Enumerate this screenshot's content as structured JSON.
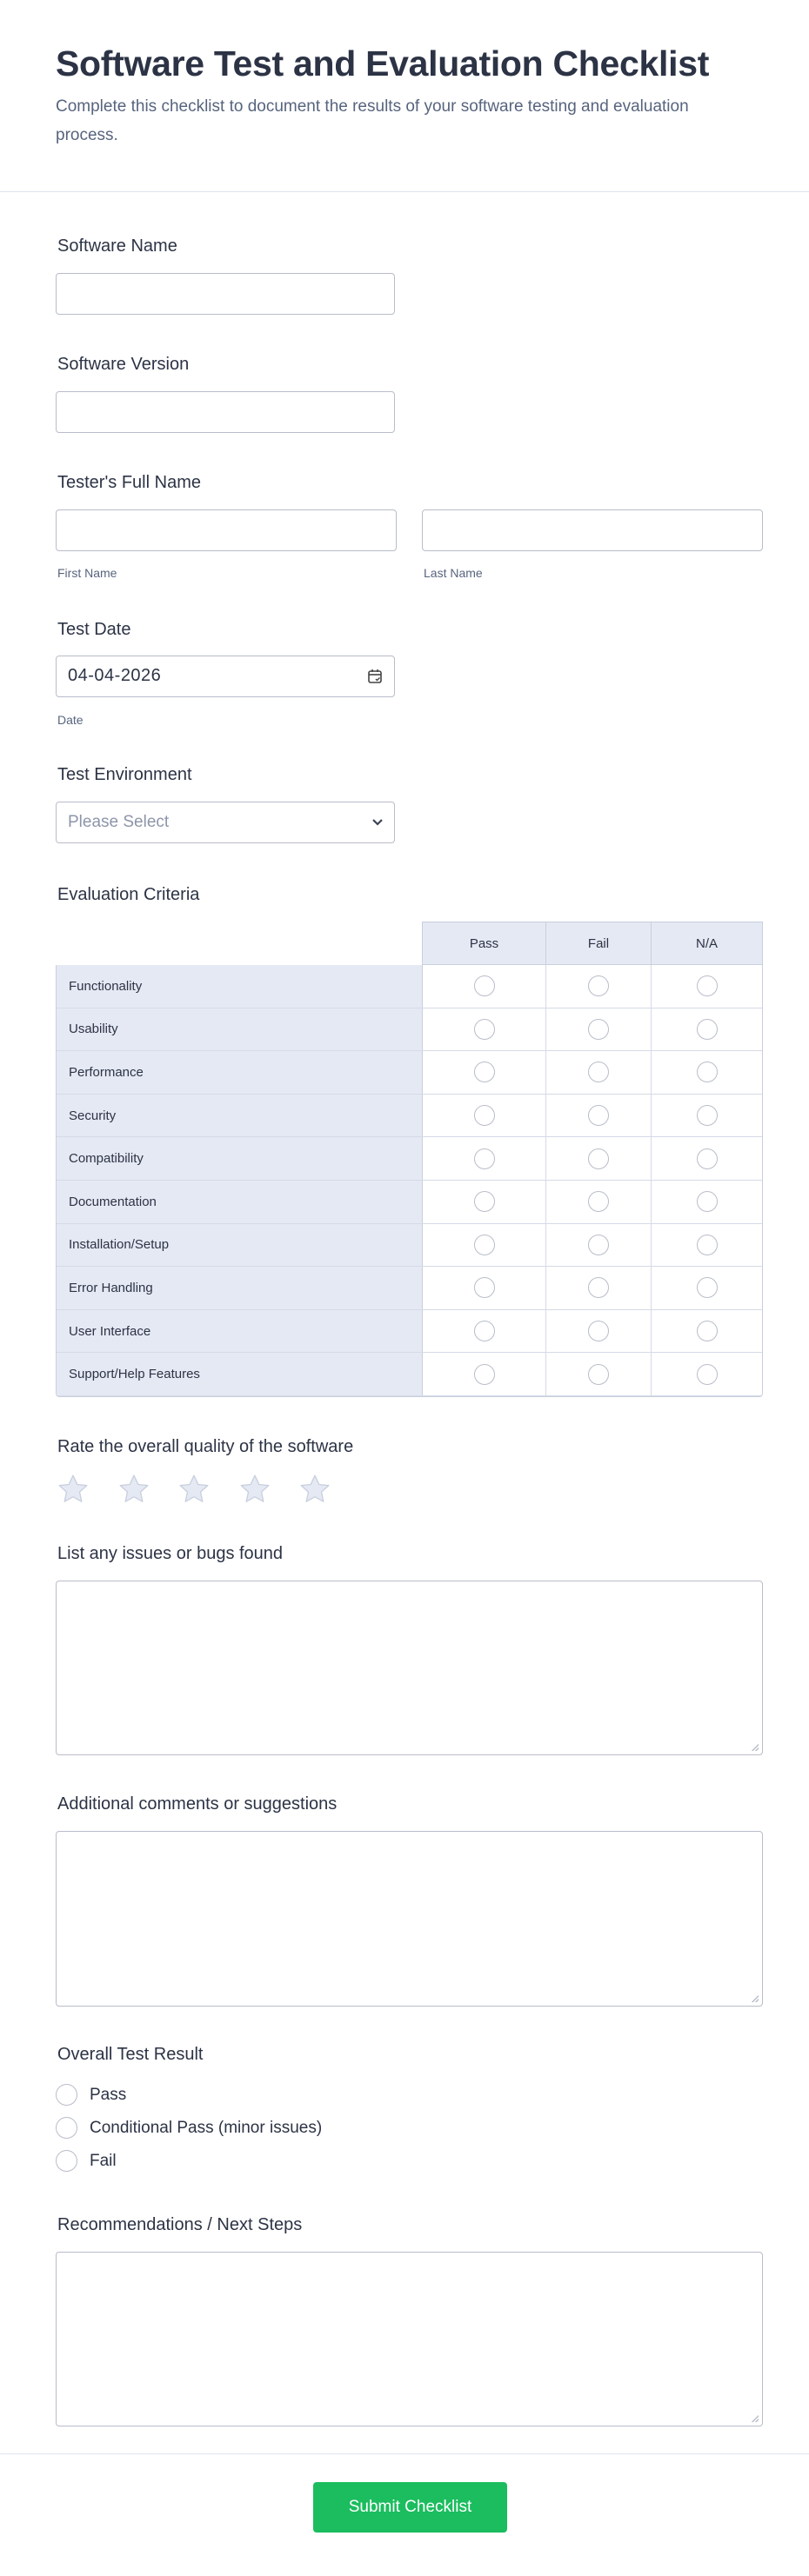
{
  "header": {
    "title": "Software Test and Evaluation Checklist",
    "subtitle": "Complete this checklist to document the results of your software testing and evaluation process."
  },
  "fields": {
    "software_name": {
      "label": "Software Name",
      "value": ""
    },
    "software_version": {
      "label": "Software Version",
      "value": ""
    },
    "tester_name": {
      "label": "Tester's Full Name",
      "first_sublabel": "First Name",
      "last_sublabel": "Last Name",
      "first": "",
      "last": ""
    },
    "test_date": {
      "label": "Test Date",
      "value": "04-04-2026",
      "sublabel": "Date",
      "icon": "calendar-icon"
    },
    "test_environment": {
      "label": "Test Environment",
      "placeholder": "Please Select",
      "icon": "chevron-down-icon"
    }
  },
  "matrix": {
    "label": "Evaluation Criteria",
    "columns": [
      "Pass",
      "Fail",
      "N/A"
    ],
    "rows": [
      "Functionality",
      "Usability",
      "Performance",
      "Security",
      "Compatibility",
      "Documentation",
      "Installation/Setup",
      "Error Handling",
      "User Interface",
      "Support/Help Features"
    ]
  },
  "rating": {
    "label": "Rate the overall quality of the software",
    "max": 5,
    "value": 0,
    "star_color": "#e5e9f4"
  },
  "issues": {
    "label": "List any issues or bugs found",
    "value": ""
  },
  "comments": {
    "label": "Additional comments or suggestions",
    "value": ""
  },
  "result": {
    "label": "Overall Test Result",
    "options": [
      "Pass",
      "Conditional Pass (minor issues)",
      "Fail"
    ]
  },
  "recommendations": {
    "label": "Recommendations / Next Steps",
    "value": ""
  },
  "submit": {
    "label": "Submit Checklist",
    "color": "#1bbd5e"
  }
}
